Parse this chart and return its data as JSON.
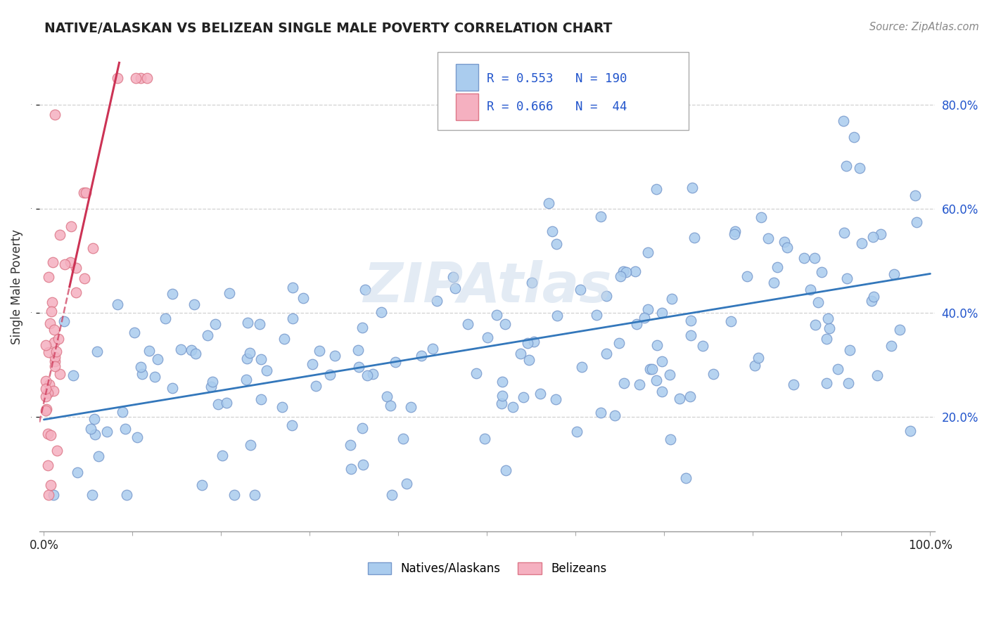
{
  "title": "NATIVE/ALASKAN VS BELIZEAN SINGLE MALE POVERTY CORRELATION CHART",
  "source": "Source: ZipAtlas.com",
  "ylabel": "Single Male Poverty",
  "xlim": [
    -0.005,
    1.005
  ],
  "ylim": [
    -0.02,
    0.92
  ],
  "x_ticks": [
    0.0,
    0.1,
    0.2,
    0.3,
    0.4,
    0.5,
    0.6,
    0.7,
    0.8,
    0.9,
    1.0
  ],
  "x_tick_labels": [
    "0.0%",
    "",
    "",
    "",
    "",
    "",
    "",
    "",
    "",
    "",
    "100.0%"
  ],
  "y_ticks": [
    0.2,
    0.4,
    0.6,
    0.8
  ],
  "blue_R": 0.553,
  "blue_N": 190,
  "pink_R": 0.666,
  "pink_N": 44,
  "blue_color": "#aaccee",
  "blue_edge": "#7799cc",
  "pink_color": "#f5b0c0",
  "pink_edge": "#dd7788",
  "blue_line_color": "#3377bb",
  "pink_line_color": "#cc3355",
  "grid_color": "#cccccc",
  "title_color": "#222222",
  "y_label_color": "#2255cc",
  "x_label_color": "#222222",
  "watermark_color": "#c8d8ea",
  "stats_text_color": "#2255cc",
  "blue_line_start_y": 0.195,
  "blue_line_end_y": 0.475,
  "pink_line_x0": -0.005,
  "pink_line_y0": 0.19,
  "pink_line_x1": 0.085,
  "pink_line_y1": 0.88
}
